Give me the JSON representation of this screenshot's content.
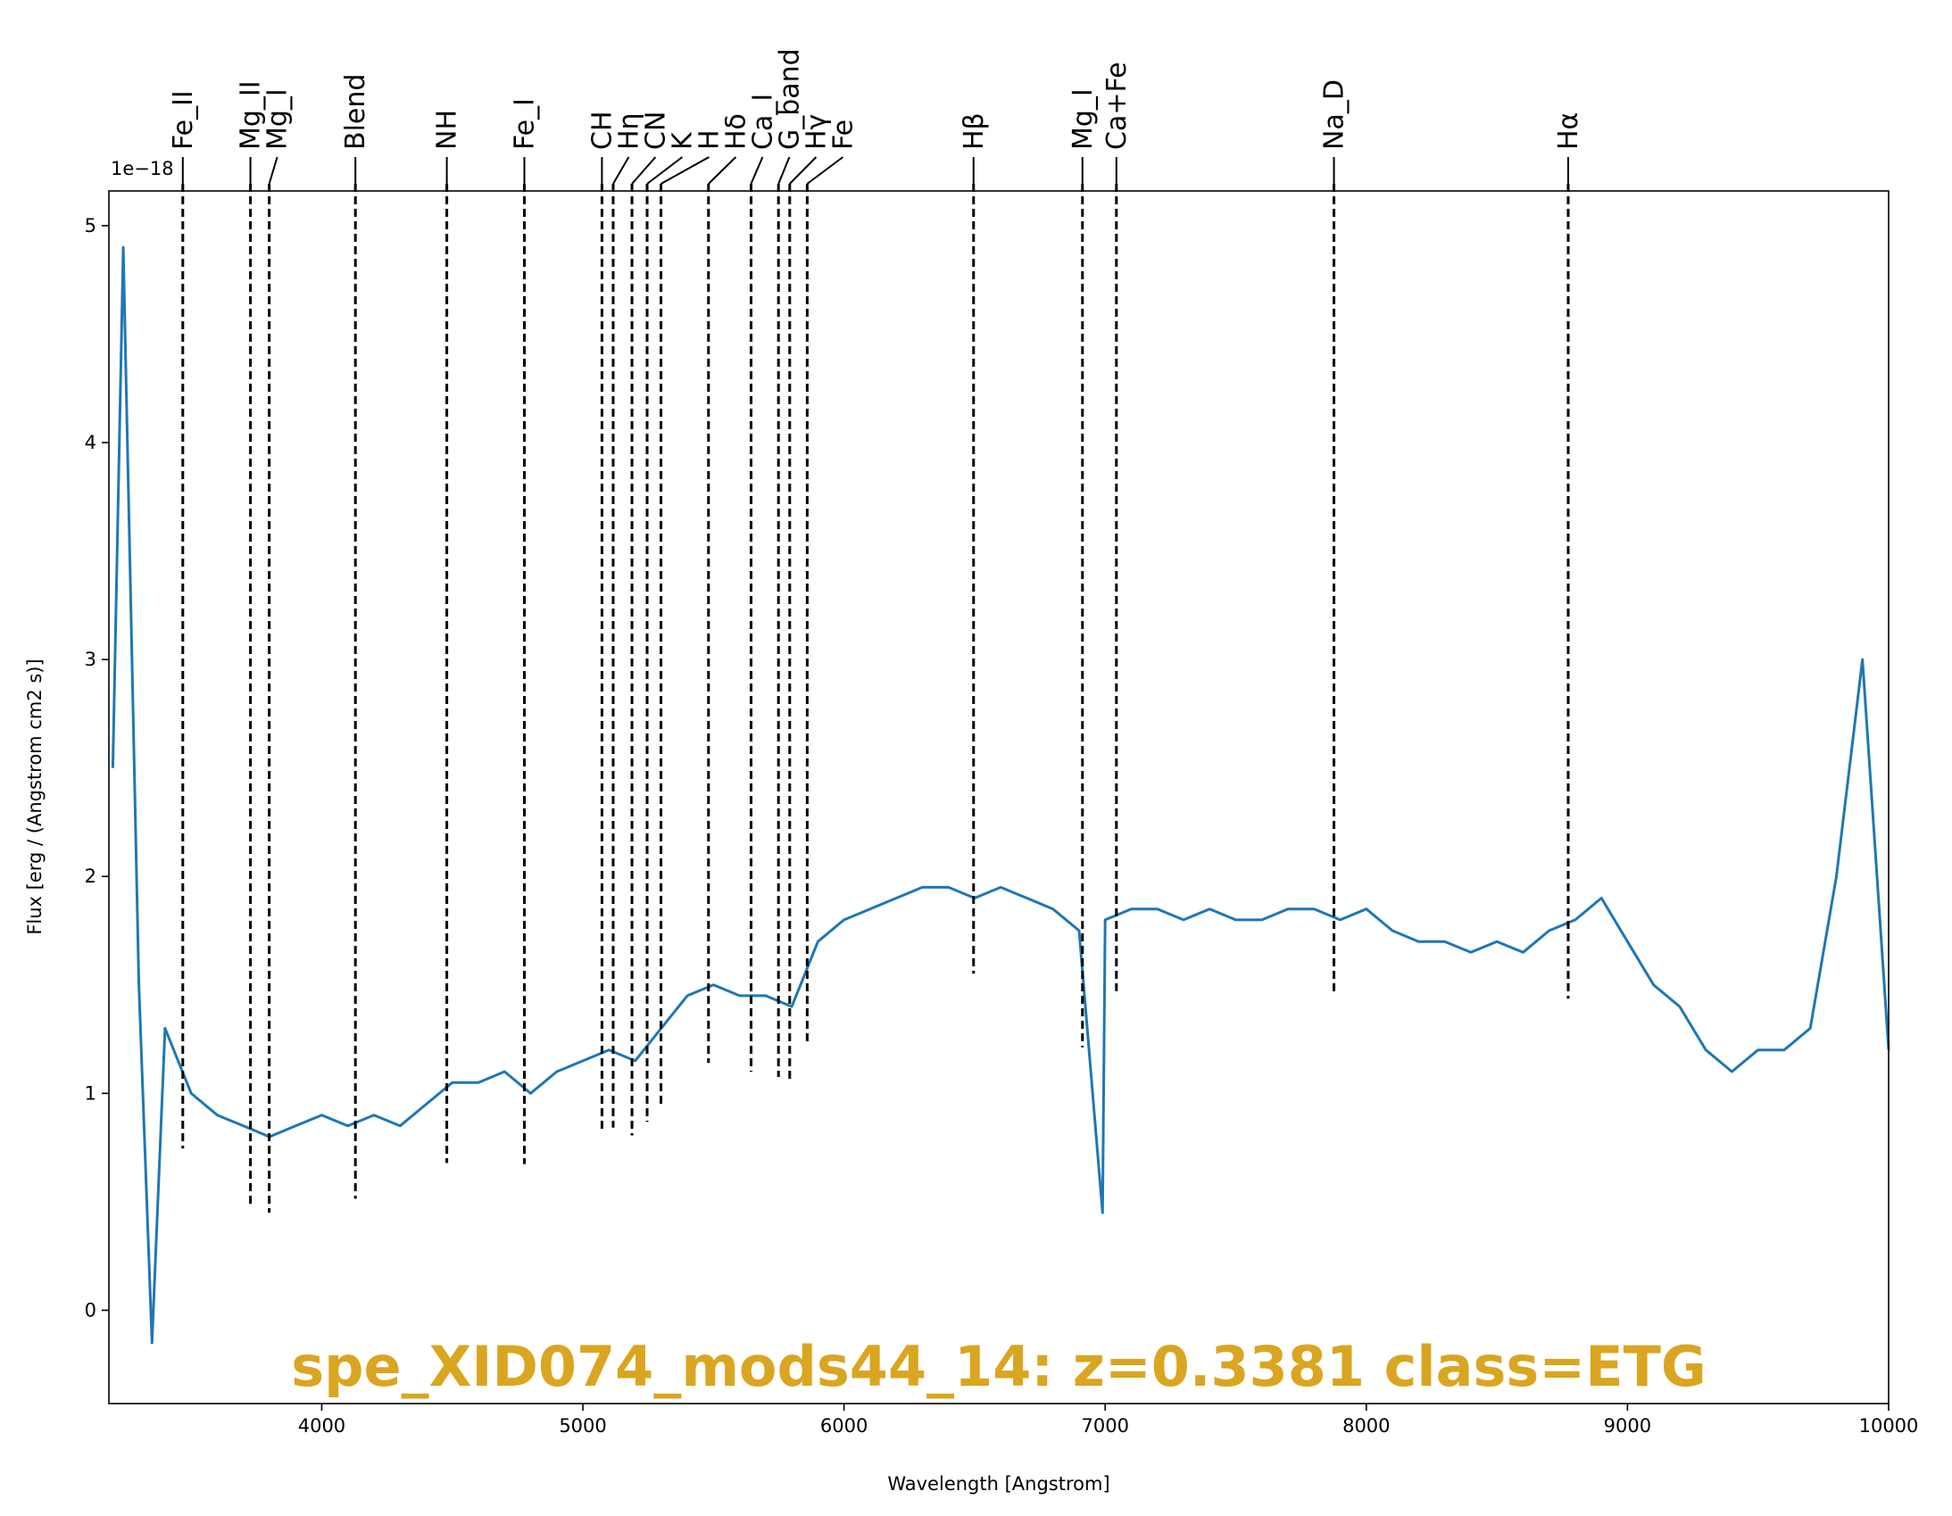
{
  "chart_data": {
    "type": "line",
    "title": "spe_XID074_mods44_14: z=0.3381 class=ETG",
    "title_color": "#daa520",
    "xlabel": "Wavelength [Angstrom]",
    "ylabel": "Flux [erg / (Angstrom cm2 s)]",
    "y_offset_label": "1e−18",
    "color": "#1f77b4",
    "x": [
      3200,
      3240,
      3300,
      3350,
      3400,
      3500,
      3600,
      3700,
      3800,
      3900,
      4000,
      4100,
      4200,
      4300,
      4400,
      4500,
      4600,
      4700,
      4800,
      4900,
      5000,
      5100,
      5200,
      5300,
      5400,
      5500,
      5600,
      5700,
      5800,
      5900,
      6000,
      6100,
      6200,
      6300,
      6400,
      6500,
      6600,
      6700,
      6800,
      6900,
      6990,
      7000,
      7100,
      7200,
      7300,
      7400,
      7500,
      7600,
      7700,
      7800,
      7900,
      8000,
      8100,
      8200,
      8300,
      8400,
      8500,
      8600,
      8700,
      8800,
      8900,
      9000,
      9100,
      9200,
      9300,
      9400,
      9500,
      9600,
      9700,
      9800,
      9900,
      10000
    ],
    "values": [
      2.5,
      4.9,
      1.5,
      -0.15,
      1.3,
      1.0,
      0.9,
      0.85,
      0.8,
      0.85,
      0.9,
      0.85,
      0.9,
      0.85,
      0.95,
      1.05,
      1.05,
      1.1,
      1.0,
      1.1,
      1.15,
      1.2,
      1.15,
      1.3,
      1.45,
      1.5,
      1.45,
      1.45,
      1.4,
      1.7,
      1.8,
      1.85,
      1.9,
      1.95,
      1.95,
      1.9,
      1.95,
      1.9,
      1.85,
      1.75,
      0.45,
      1.8,
      1.85,
      1.85,
      1.8,
      1.85,
      1.8,
      1.8,
      1.85,
      1.85,
      1.8,
      1.85,
      1.75,
      1.7,
      1.7,
      1.65,
      1.7,
      1.65,
      1.75,
      1.8,
      1.9,
      1.7,
      1.5,
      1.4,
      1.2,
      1.1,
      1.2,
      1.2,
      1.3,
      2.0,
      3.0,
      1.2
    ],
    "lines": [
      {
        "label": "Fe_II",
        "wavelength": 3468
      },
      {
        "label": "Mg_II",
        "wavelength": 3727
      },
      {
        "label": "Mg_I",
        "wavelength": 3799
      },
      {
        "label": "Blend",
        "wavelength": 4129
      },
      {
        "label": "NH",
        "wavelength": 4479
      },
      {
        "label": "Fe_I",
        "wavelength": 4776
      },
      {
        "label": "CH",
        "wavelength": 5073
      },
      {
        "label": "Hη",
        "wavelength": 5116
      },
      {
        "label": "CN",
        "wavelength": 5188
      },
      {
        "label": "K",
        "wavelength": 5246
      },
      {
        "label": "H",
        "wavelength": 5299
      },
      {
        "label": "Hδ",
        "wavelength": 5481
      },
      {
        "label": "Ca_I",
        "wavelength": 5644
      },
      {
        "label": "G_band",
        "wavelength": 5749
      },
      {
        "label": "Hγ",
        "wavelength": 5792
      },
      {
        "label": "Fe",
        "wavelength": 5859
      },
      {
        "label": "Hβ",
        "wavelength": 6496
      },
      {
        "label": "Mg_I",
        "wavelength": 6913
      },
      {
        "label": "Ca+Fe",
        "wavelength": 7043
      },
      {
        "label": "Na_D",
        "wavelength": 7876
      },
      {
        "label": "Hα",
        "wavelength": 8773
      }
    ],
    "xlim": [
      3185,
      10000
    ],
    "xticks": [
      4000,
      5000,
      6000,
      7000,
      8000,
      9000,
      10000
    ],
    "ylim": [
      -0.43,
      5.16
    ],
    "yticks": [
      0,
      1,
      2,
      3,
      4,
      5
    ]
  }
}
